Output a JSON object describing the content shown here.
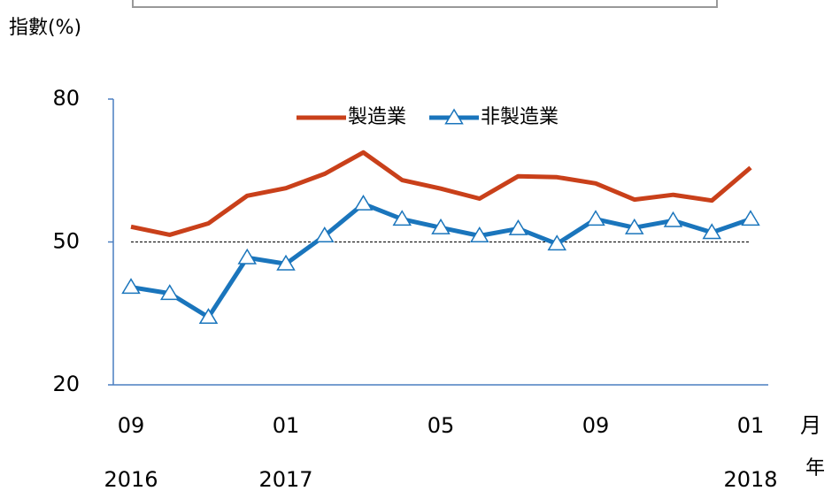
{
  "chart_data": {
    "type": "line",
    "ylabel": "指數(%)",
    "xlabel": "月",
    "year_label": "年",
    "categories": [
      "09",
      null,
      null,
      null,
      "01",
      null,
      null,
      null,
      "05",
      null,
      null,
      null,
      "09",
      null,
      null,
      null,
      "01"
    ],
    "years": [
      "2016",
      null,
      null,
      null,
      "2017",
      null,
      null,
      null,
      null,
      null,
      null,
      null,
      null,
      null,
      null,
      null,
      "2018"
    ],
    "series": [
      {
        "name": "製造業",
        "color": "#c9401a",
        "marker": "none",
        "values": [
          53.2,
          51.5,
          53.9,
          59.7,
          61.3,
          64.3,
          68.8,
          63.0,
          61.2,
          59.1,
          63.8,
          63.6,
          62.3,
          58.9,
          59.9,
          58.7,
          65.6
        ]
      },
      {
        "name": "非製造業",
        "color": "#1a75bc",
        "marker": "triangle",
        "values": [
          40.5,
          39.2,
          34.2,
          46.7,
          45.4,
          51.3,
          58.0,
          54.8,
          53.0,
          51.3,
          52.8,
          49.6,
          54.8,
          53.0,
          54.5,
          52.0,
          54.8
        ]
      }
    ],
    "ylim": [
      20,
      80
    ],
    "yticks": [
      20,
      50,
      80
    ],
    "reference_line": 50,
    "legend": "top"
  }
}
